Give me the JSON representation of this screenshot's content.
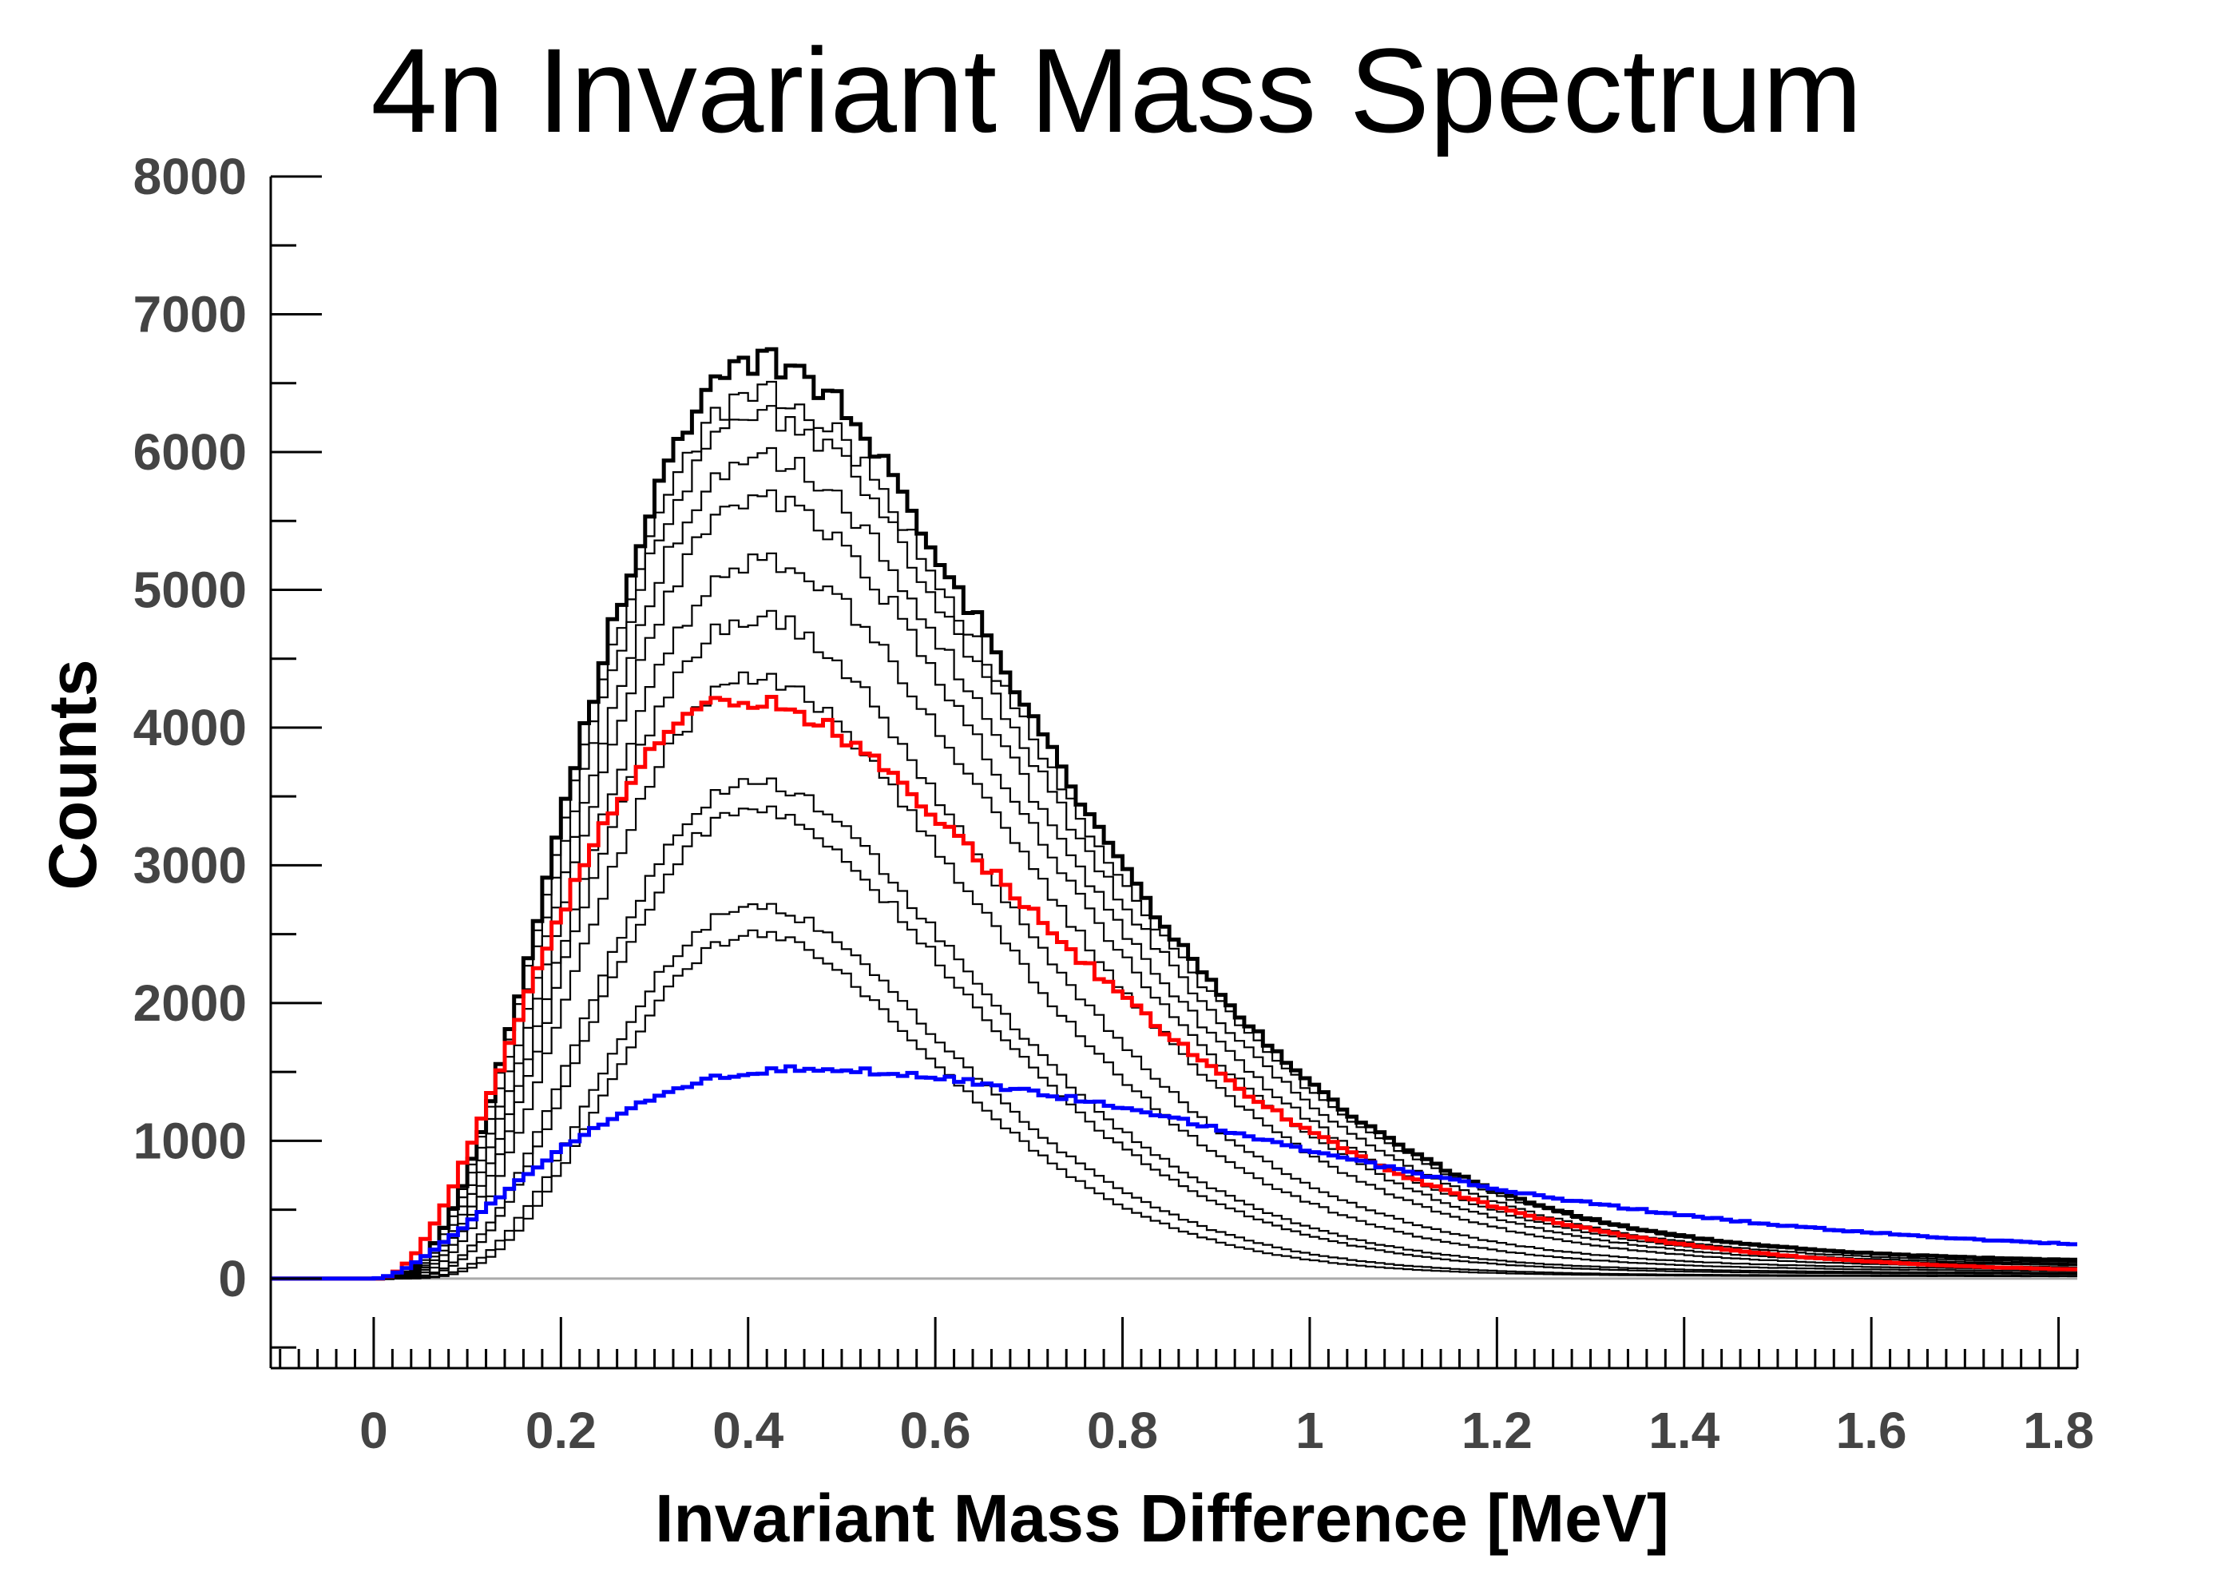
{
  "chart_data": {
    "type": "line",
    "title": "4n Invariant Mass Spectrum",
    "xlabel": "Invariant Mass Difference [MeV]",
    "ylabel": "Counts",
    "xlim": [
      -0.11,
      1.82
    ],
    "ylim": [
      -650,
      8000
    ],
    "xticks": [
      0,
      0.2,
      0.4,
      0.6,
      0.8,
      1,
      1.2,
      1.4,
      1.6,
      1.8
    ],
    "xtick_labels": [
      "0",
      "0.2",
      "0.4",
      "0.6",
      "0.8",
      "1",
      "1.2",
      "1.4",
      "1.6",
      "1.8"
    ],
    "yticks": [
      0,
      1000,
      2000,
      3000,
      4000,
      5000,
      6000,
      7000,
      8000
    ],
    "ytick_labels": [
      "0",
      "1000",
      "2000",
      "3000",
      "4000",
      "5000",
      "6000",
      "7000",
      "8000"
    ],
    "grid": false,
    "legend": "none",
    "zero_line_color": "#aaaaaa",
    "bin_width": 0.01,
    "histogram_style": "step",
    "series_profiles": [
      {
        "color": "#000000",
        "peak": 6650,
        "mode": 0.42,
        "shape": 4.2,
        "tail": 140
      },
      {
        "color": "#000000",
        "peak": 6420,
        "mode": 0.42,
        "shape": 4.2,
        "tail": 135
      },
      {
        "color": "#000000",
        "peak": 6250,
        "mode": 0.42,
        "shape": 4.3,
        "tail": 125
      },
      {
        "color": "#000000",
        "peak": 5950,
        "mode": 0.42,
        "shape": 4.4,
        "tail": 115
      },
      {
        "color": "#000000",
        "peak": 5650,
        "mode": 0.42,
        "shape": 4.5,
        "tail": 105
      },
      {
        "color": "#000000",
        "peak": 5200,
        "mode": 0.42,
        "shape": 4.6,
        "tail": 90
      },
      {
        "color": "#000000",
        "peak": 4800,
        "mode": 0.41,
        "shape": 4.8,
        "tail": 80
      },
      {
        "color": "#000000",
        "peak": 4350,
        "mode": 0.41,
        "shape": 5.0,
        "tail": 65
      },
      {
        "color": "#000000",
        "peak": 3600,
        "mode": 0.41,
        "shape": 5.4,
        "tail": 50
      },
      {
        "color": "#000000",
        "peak": 3400,
        "mode": 0.41,
        "shape": 5.6,
        "tail": 40
      },
      {
        "color": "#000000",
        "peak": 2700,
        "mode": 0.41,
        "shape": 6.2,
        "tail": 25
      },
      {
        "color": "#000000",
        "peak": 2500,
        "mode": 0.41,
        "shape": 6.6,
        "tail": 20
      },
      {
        "color": "#ff0000",
        "peak": 4200,
        "mode": 0.4,
        "shape": 3.4,
        "tail": 40
      },
      {
        "color": "#0000ff",
        "peak": 1520,
        "mode": 0.46,
        "shape": 2.8,
        "tail": 190
      }
    ]
  }
}
